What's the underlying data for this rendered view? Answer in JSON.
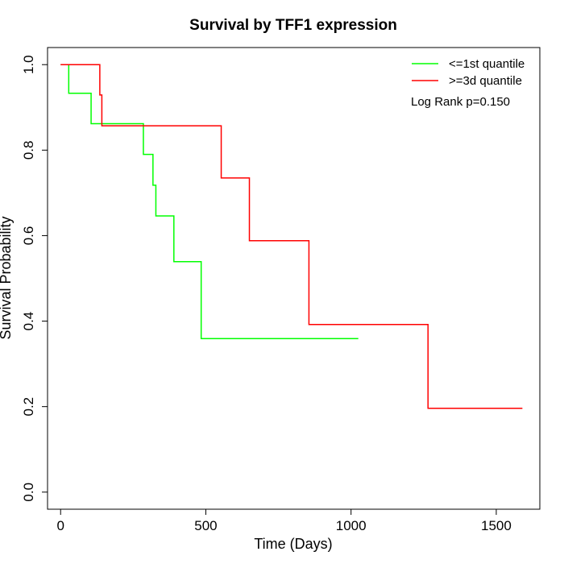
{
  "chart_data": {
    "type": "line",
    "title": "Survival by TFF1 expression",
    "xlabel": "Time (Days)",
    "ylabel": "Survival Probability",
    "xlim": [
      -45,
      1650
    ],
    "ylim": [
      -0.04,
      1.04
    ],
    "xticks": [
      0,
      500,
      1000,
      1500
    ],
    "yticks": [
      0.0,
      0.2,
      0.4,
      0.6,
      0.8,
      1.0
    ],
    "xtick_labels": [
      "0",
      "500",
      "1000",
      "1500"
    ],
    "ytick_labels": [
      "0.0",
      "0.2",
      "0.4",
      "0.6",
      "0.8",
      "1.0"
    ],
    "grid": false,
    "legend_position": "top-right",
    "annotation": "Log Rank p=0.150",
    "series": [
      {
        "name": "<=1st quantile",
        "color": "#00ff00",
        "step": "post",
        "x": [
          0,
          28,
          105,
          285,
          318,
          328,
          390,
          484,
          1025
        ],
        "y": [
          1.0,
          0.933,
          0.862,
          0.79,
          0.718,
          0.646,
          0.539,
          0.359,
          0.359
        ]
      },
      {
        "name": ">=3d quantile",
        "color": "#ff0000",
        "step": "post",
        "x": [
          0,
          135,
          142,
          553,
          650,
          855,
          1265,
          1590
        ],
        "y": [
          1.0,
          0.929,
          0.857,
          0.735,
          0.588,
          0.392,
          0.196,
          0.196
        ]
      }
    ]
  }
}
